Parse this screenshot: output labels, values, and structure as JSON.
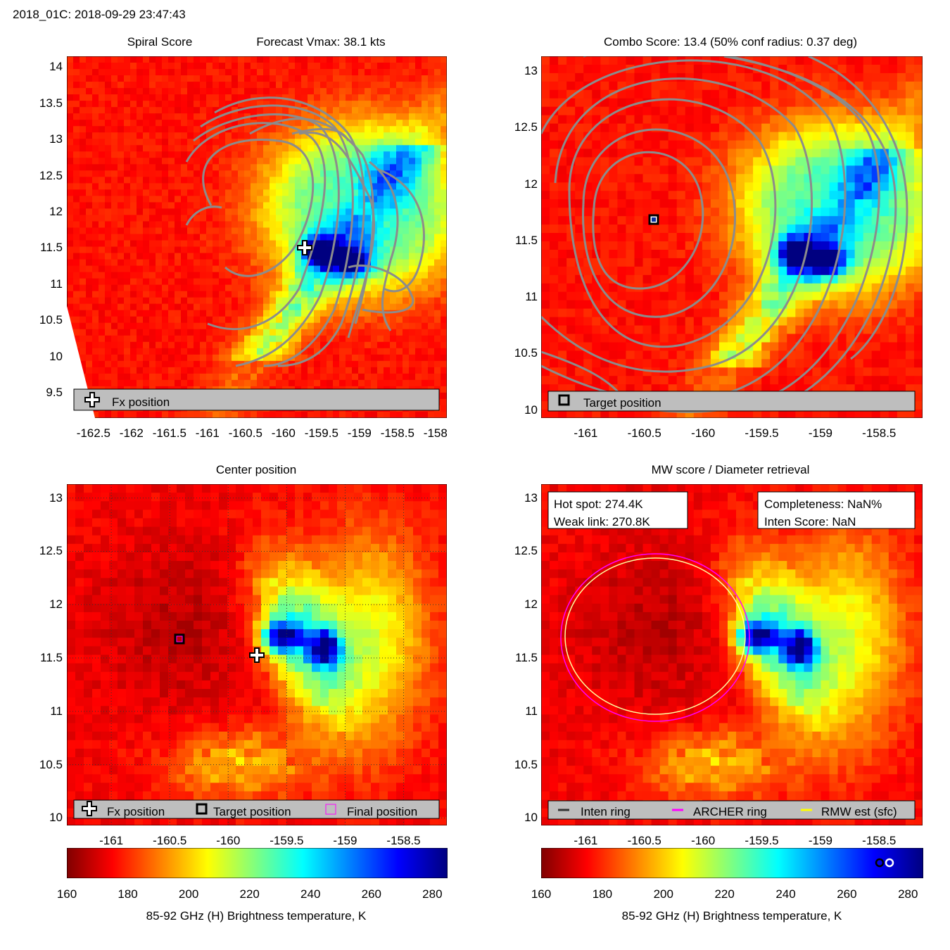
{
  "header": {
    "title": "2018_01C: 2018-09-29 23:47:43"
  },
  "colormap": {
    "ticks": [
      160,
      180,
      200,
      220,
      240,
      260,
      280
    ],
    "min": 160,
    "max": 285,
    "label": "85-92 GHz (H) Brightness temperature, K"
  },
  "chart_data": [
    {
      "type": "heatmap",
      "title": "Spiral Score",
      "subtitle": "Forecast Vmax: 38.1 kts",
      "x_ticks": [
        -162.5,
        -162,
        -161.5,
        -161,
        -160.5,
        -160,
        -159.5,
        -159,
        -158.5,
        -158
      ],
      "y_ticks": [
        9.5,
        10,
        10.5,
        11,
        11.5,
        12,
        12.5,
        13,
        13.5,
        14
      ],
      "xlim": [
        -162.85,
        -157.85
      ],
      "ylim": [
        9.15,
        14.15
      ],
      "markers": [
        {
          "kind": "fx-cross",
          "lon": -159.75,
          "lat": 11.5
        }
      ],
      "legend": {
        "placement": "bottom",
        "entries": [
          "Fx position"
        ]
      },
      "contours": "gray spiral overlay"
    },
    {
      "type": "heatmap",
      "title": "Combo Score: 13.4  (50% conf radius: 0.37 deg)",
      "x_ticks": [
        -161,
        -160.5,
        -160,
        -159.5,
        -159,
        -158.5
      ],
      "y_ticks": [
        10,
        10.5,
        11,
        11.5,
        12,
        12.5,
        13
      ],
      "xlim": [
        -161.38,
        -158.13
      ],
      "ylim": [
        9.93,
        13.13
      ],
      "markers": [
        {
          "kind": "target-square",
          "lon": -160.4,
          "lat": 11.67
        }
      ],
      "legend": {
        "placement": "bottom",
        "entries": [
          "Target position"
        ]
      },
      "contours": "gray concentric overlay"
    },
    {
      "type": "heatmap",
      "title": "Center position",
      "x_ticks": [
        -161,
        -160.5,
        -160,
        -159.5,
        -159,
        -158.5
      ],
      "y_ticks": [
        10,
        10.5,
        11,
        11.5,
        12,
        12.5,
        13
      ],
      "xlim": [
        -161.38,
        -158.13
      ],
      "ylim": [
        9.93,
        13.13
      ],
      "grid": true,
      "markers": [
        {
          "kind": "fx-cross",
          "lon": -159.75,
          "lat": 11.5
        },
        {
          "kind": "target-square",
          "lon": -160.4,
          "lat": 11.67
        },
        {
          "kind": "final-square",
          "lon": -160.4,
          "lat": 11.67
        }
      ],
      "legend": {
        "placement": "bottom",
        "entries": [
          "Fx position",
          "Target position",
          "Final position"
        ]
      }
    },
    {
      "type": "heatmap",
      "title": "MW score / Diameter retrieval",
      "x_ticks": [
        -161,
        -160.5,
        -160,
        -159.5,
        -159,
        -158.5
      ],
      "y_ticks": [
        10,
        10.5,
        11,
        11.5,
        12,
        12.5,
        13
      ],
      "xlim": [
        -161.38,
        -158.13
      ],
      "ylim": [
        9.93,
        13.13
      ],
      "info_left": [
        "Hot spot: 274.4K",
        "Weak link: 270.8K"
      ],
      "info_right": [
        "Completeness: NaN%",
        "Inten Score: NaN"
      ],
      "rings": [
        {
          "name": "ARCHER ring",
          "color": "#ff00ff"
        },
        {
          "name": "RMW est (sfc)",
          "color": "#ffff00"
        }
      ],
      "legend": {
        "placement": "bottom",
        "entries": [
          "Inten ring",
          "ARCHER ring",
          "RMW est (sfc)"
        ],
        "colors": [
          "#333333",
          "#ff00ff",
          "#ffff00"
        ]
      }
    }
  ]
}
